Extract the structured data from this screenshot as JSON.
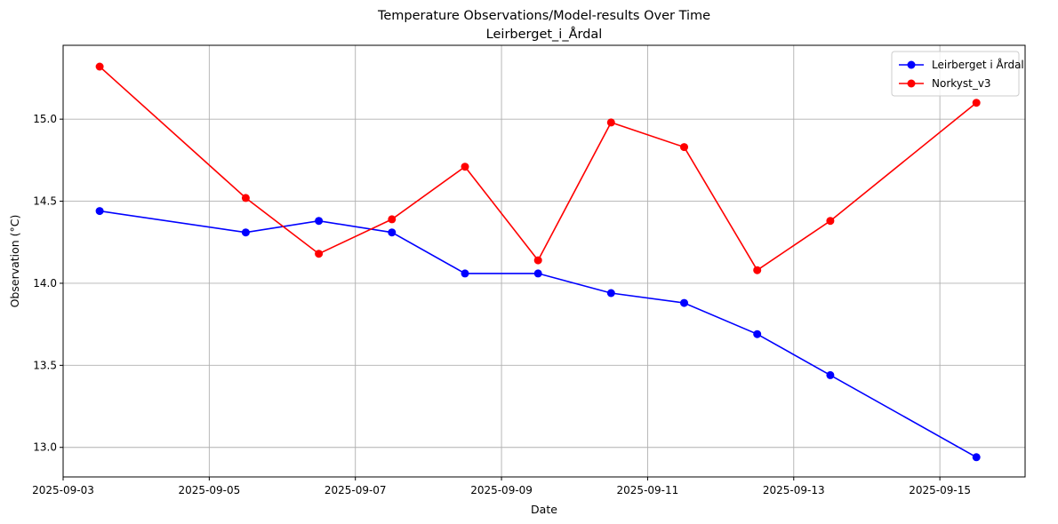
{
  "chart_data": {
    "type": "line",
    "title": "Temperature Observations/Model-results Over Time",
    "subtitle": "Leirberget_i_Årdal",
    "xlabel": "Date",
    "ylabel": "Observation (°C)",
    "x": [
      "2025-09-03 12:00",
      "2025-09-05 12:00",
      "2025-09-06 12:00",
      "2025-09-07 12:00",
      "2025-09-08 12:00",
      "2025-09-09 12:00",
      "2025-09-10 12:00",
      "2025-09-11 12:00",
      "2025-09-12 12:00",
      "2025-09-13 12:00",
      "2025-09-15 12:00"
    ],
    "xlim": [
      "2025-09-03 00:00",
      "2025-09-16 04:00"
    ],
    "xticks": [
      "2025-09-03",
      "2025-09-05",
      "2025-09-07",
      "2025-09-09",
      "2025-09-11",
      "2025-09-13",
      "2025-09-15"
    ],
    "ylim": [
      12.82,
      15.45
    ],
    "yticks": [
      "13.0",
      "13.5",
      "14.0",
      "14.5",
      "15.0"
    ],
    "grid": true,
    "legend_position": "top-right",
    "series": [
      {
        "name": "Leirberget i Årdal",
        "color": "#0000ff",
        "values": [
          14.44,
          14.31,
          14.38,
          14.31,
          14.06,
          14.06,
          13.94,
          13.88,
          13.69,
          13.44,
          12.94
        ]
      },
      {
        "name": "Norkyst_v3",
        "color": "#ff0000",
        "values": [
          15.32,
          14.52,
          14.18,
          14.39,
          14.71,
          14.14,
          14.98,
          14.83,
          14.08,
          14.38,
          15.1
        ]
      }
    ]
  }
}
